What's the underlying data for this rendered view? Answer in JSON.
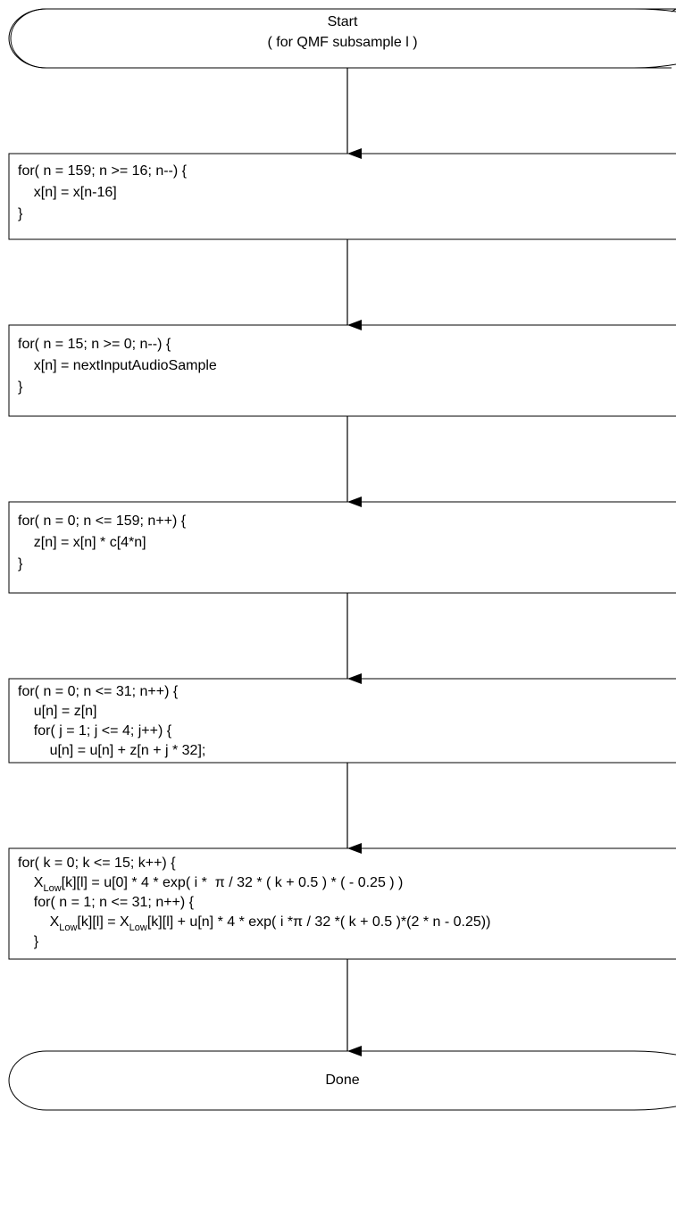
{
  "start": {
    "line1": "Start",
    "line2": "( for QMF subsample l )"
  },
  "blocks": [
    {
      "name": "shift-loop",
      "lines": [
        "for( n = 159; n >= 16; n--) {",
        "    x[n] = x[n-16]",
        "}"
      ]
    },
    {
      "name": "input-loop",
      "lines": [
        "for( n = 15; n >= 0; n--) {",
        "    x[n] = nextInputAudioSample",
        "}"
      ]
    },
    {
      "name": "window-loop",
      "lines": [
        "for( n = 0; n <= 159; n++) {",
        "    z[n] = x[n] * c[4*n]",
        "}"
      ]
    },
    {
      "name": "sum-loop",
      "lines": [
        "for( n = 0; n <= 31; n++) {",
        "    u[n] = z[n]",
        "    for( j = 1; j <= 4; j++) {",
        "        u[n] = u[n] + z[n + j * 32];",
        "    }",
        "}"
      ]
    }
  ],
  "final_block": {
    "line1": "for( k = 0; k <= 15; k++) {",
    "line2_x": "X",
    "line2_sub": "Low",
    "line2_rest": "[k][l] = u[0] * 4 * exp( i *  π / 32 * ( k + 0.5 ) * ( - 0.25 ) )",
    "line3": "for( n = 1; n <= 31; n++) {",
    "line4_x1": "X",
    "line4_sub1": "Low",
    "line4_mid": "[k][l] = X",
    "line4_sub2": "Low",
    "line4_rest": "[k][l] + u[n] * 4 * exp( i *π / 32 *( k + 0.5 )*(2 * n - 0.25))",
    "line5": "}",
    "line6": "}"
  },
  "done": {
    "label": "Done"
  }
}
